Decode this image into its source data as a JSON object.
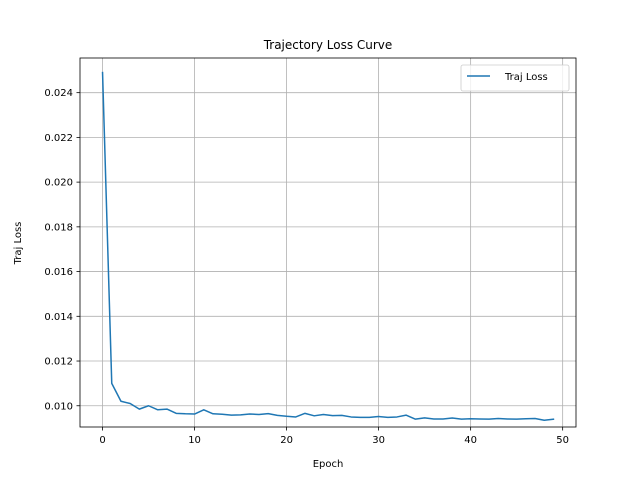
{
  "chart_data": {
    "type": "line",
    "title": "Trajectory Loss Curve",
    "xlabel": "Epoch",
    "ylabel": "Traj Loss",
    "xlim": [
      -2.45,
      51.45
    ],
    "ylim": [
      0.00905,
      0.02555
    ],
    "xticks": [
      0,
      10,
      20,
      30,
      40,
      50
    ],
    "yticks": [
      0.01,
      0.012,
      0.014,
      0.016,
      0.018,
      0.02,
      0.022,
      0.024
    ],
    "ytick_labels": [
      "0.010",
      "0.012",
      "0.014",
      "0.016",
      "0.018",
      "0.020",
      "0.022",
      "0.024"
    ],
    "grid": true,
    "legend_position": "upper right",
    "series": [
      {
        "name": "Traj Loss",
        "color": "#1f77b4",
        "x": [
          0,
          1,
          2,
          3,
          4,
          5,
          6,
          7,
          8,
          9,
          10,
          11,
          12,
          13,
          14,
          15,
          16,
          17,
          18,
          19,
          20,
          21,
          22,
          23,
          24,
          25,
          26,
          27,
          28,
          29,
          30,
          31,
          32,
          33,
          34,
          35,
          36,
          37,
          38,
          39,
          40,
          41,
          42,
          43,
          44,
          45,
          46,
          47,
          48,
          49
        ],
        "y": [
          0.0249,
          0.011,
          0.0102,
          0.0101,
          0.00985,
          0.01,
          0.00982,
          0.00985,
          0.00966,
          0.00964,
          0.00963,
          0.00982,
          0.00964,
          0.00962,
          0.00958,
          0.00959,
          0.00963,
          0.00961,
          0.00965,
          0.00957,
          0.00953,
          0.0095,
          0.00966,
          0.00955,
          0.00961,
          0.00956,
          0.00957,
          0.0095,
          0.00948,
          0.00948,
          0.00952,
          0.00948,
          0.0095,
          0.00958,
          0.0094,
          0.00946,
          0.00941,
          0.00941,
          0.00945,
          0.0094,
          0.00942,
          0.00941,
          0.0094,
          0.00943,
          0.00941,
          0.0094,
          0.00942,
          0.00943,
          0.00935,
          0.0094
        ]
      }
    ]
  }
}
